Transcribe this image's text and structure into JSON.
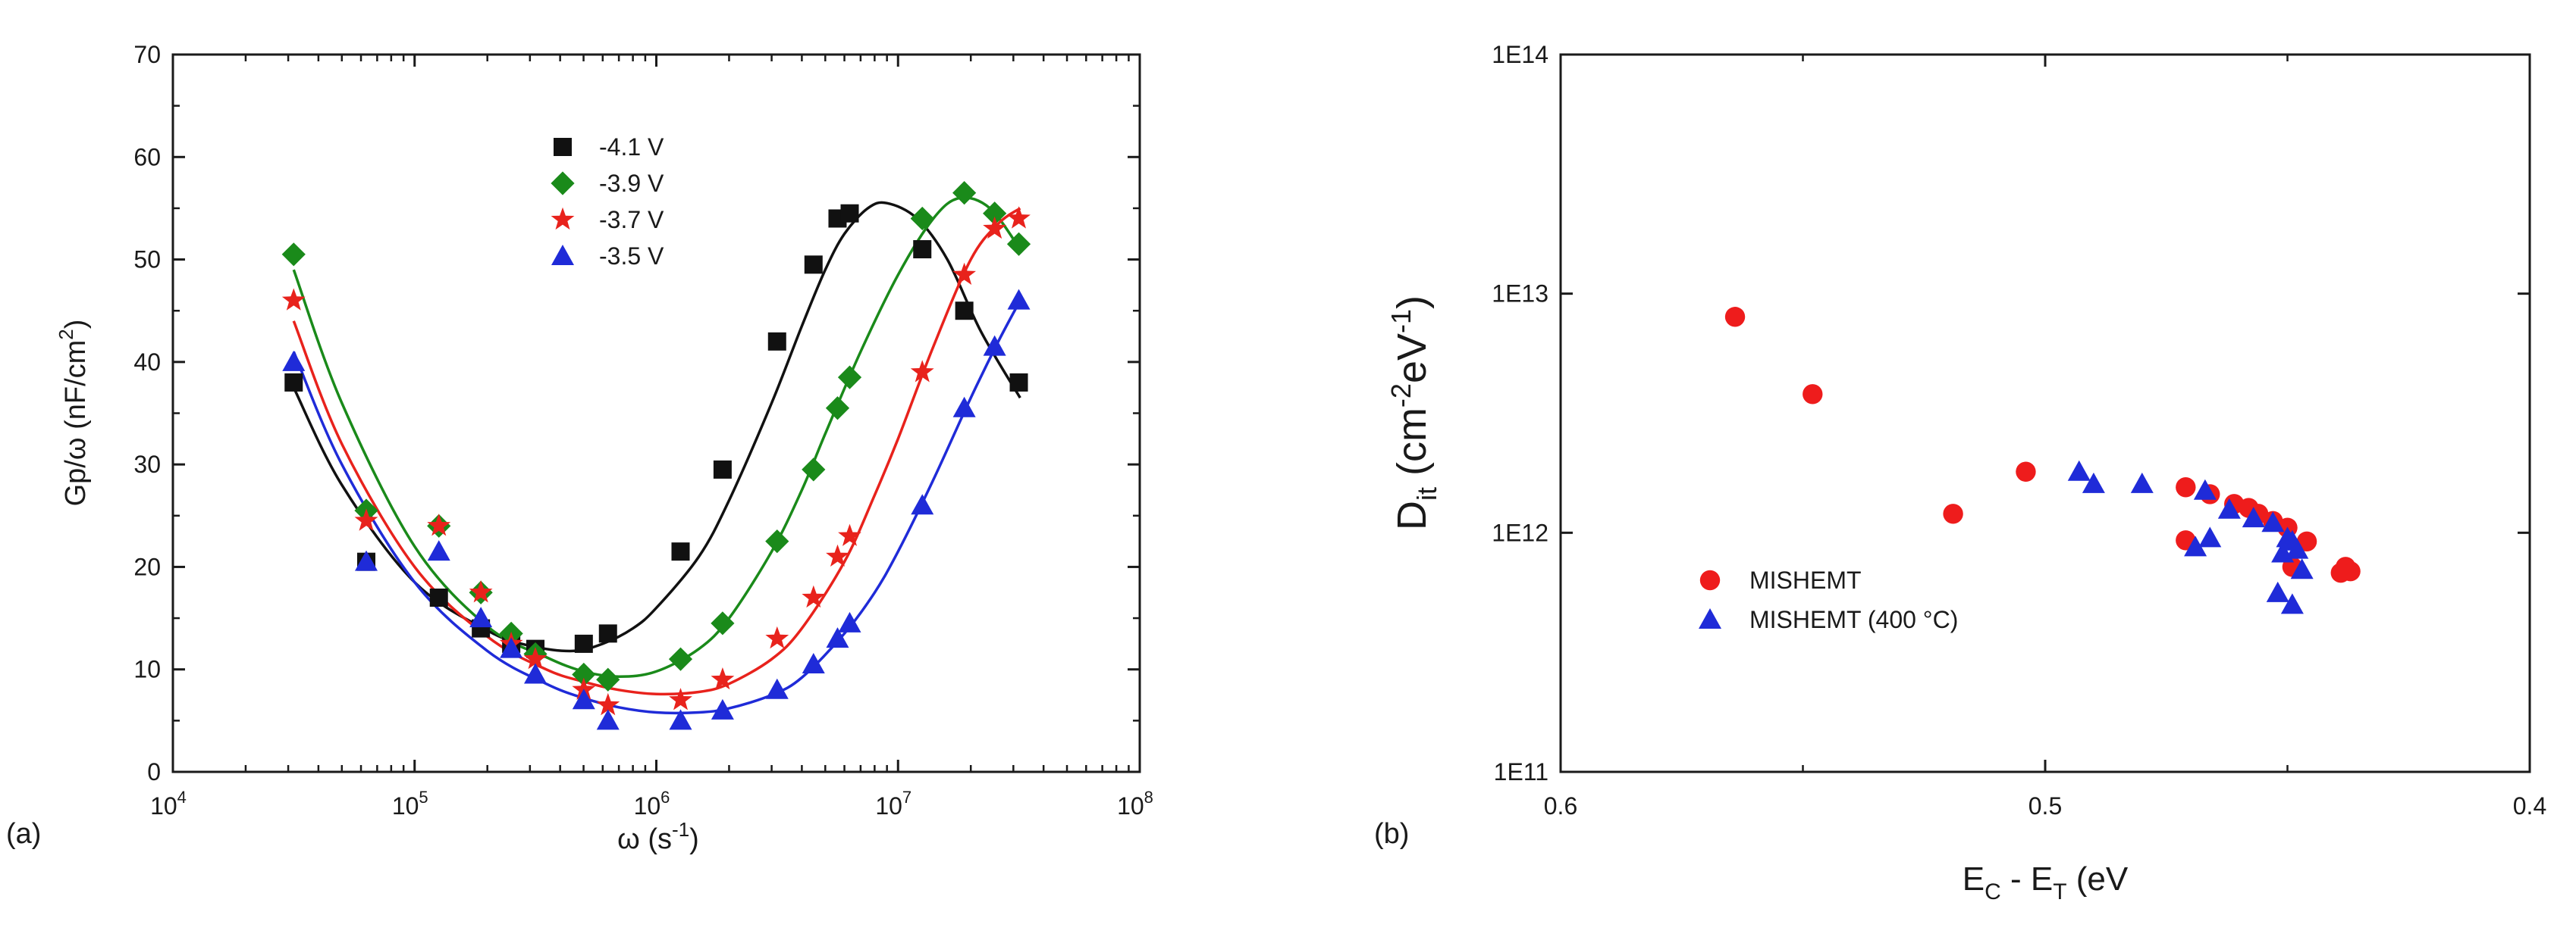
{
  "chart_data": [
    {
      "type": "scatter",
      "panel_label": "(a)",
      "xscale": "log",
      "xlim": [
        10000,
        100000000
      ],
      "ylim": [
        0,
        70
      ],
      "xlabel": {
        "base": "ω (s",
        "sup": "-1",
        "end": ")"
      },
      "ylabel": {
        "base": "Gp/ω (nF/cm",
        "sup": "2",
        "end": ")"
      },
      "x_ticks": [
        {
          "value": 10000,
          "base": "10",
          "exp": "4"
        },
        {
          "value": 100000,
          "base": "10",
          "exp": "5"
        },
        {
          "value": 1000000,
          "base": "10",
          "exp": "6"
        },
        {
          "value": 10000000,
          "base": "10",
          "exp": "7"
        },
        {
          "value": 100000000,
          "base": "10",
          "exp": "8"
        }
      ],
      "y_ticks": [
        0,
        10,
        20,
        30,
        40,
        50,
        60,
        70
      ],
      "y_tick_labels": [
        "0",
        "10",
        "20",
        "30",
        "40",
        "50",
        "60",
        "70"
      ],
      "legend_position": "upper-center",
      "series": [
        {
          "name": "-4.1 V",
          "color": "#111111",
          "marker": "square",
          "x": [
            31600,
            63100,
            126000,
            188000,
            251000,
            316000,
            501000,
            631000,
            1260000,
            1880000,
            3160000,
            4470000,
            5620000,
            6310000,
            12600000,
            18800000,
            31600000
          ],
          "y": [
            38,
            20.5,
            17,
            14,
            12.5,
            12,
            12.5,
            13.5,
            21.5,
            29.5,
            42,
            49.5,
            54,
            54.5,
            51,
            45,
            38
          ],
          "fit_x": [
            31600,
            50000,
            100000,
            200000,
            300000,
            450000,
            600000,
            800000,
            1000000,
            1500000,
            2000000,
            3000000,
            4000000,
            5000000,
            6000000,
            7500000,
            9000000,
            12000000,
            16000000,
            22000000,
            32000000
          ],
          "fit_y": [
            37.5,
            28,
            18.5,
            13.8,
            12.3,
            11.8,
            12.5,
            14,
            16,
            21,
            26.5,
            36,
            43.5,
            49,
            52.5,
            55,
            55.5,
            54,
            50,
            43,
            36.5
          ]
        },
        {
          "name": "-3.9 V",
          "color": "#1a8a1a",
          "marker": "diamond",
          "x": [
            31600,
            63100,
            126000,
            188000,
            251000,
            316000,
            501000,
            631000,
            1260000,
            1880000,
            3160000,
            4470000,
            5620000,
            6310000,
            12600000,
            18800000,
            25100000,
            31600000
          ],
          "y": [
            50.5,
            25.5,
            24,
            17.5,
            13.5,
            11.5,
            9.5,
            9,
            11,
            14.5,
            22.5,
            29.5,
            35.5,
            38.5,
            54,
            56.5,
            54.5,
            51.5
          ],
          "fit_x": [
            31600,
            50000,
            100000,
            200000,
            350000,
            500000,
            700000,
            1000000,
            1500000,
            2000000,
            3000000,
            4000000,
            5000000,
            7000000,
            10000000,
            14000000,
            18000000,
            24000000,
            32000000
          ],
          "fit_y": [
            49,
            36,
            22,
            14.2,
            11.2,
            9.8,
            9.3,
            9.8,
            12,
            15,
            21.5,
            27.5,
            33,
            41,
            48.5,
            54,
            56,
            55,
            51
          ]
        },
        {
          "name": "-3.7 V",
          "color": "#e8221c",
          "marker": "star",
          "x": [
            31600,
            63100,
            126000,
            188000,
            251000,
            316000,
            501000,
            631000,
            1260000,
            1880000,
            3160000,
            4470000,
            5620000,
            6310000,
            12600000,
            18800000,
            25100000,
            31600000
          ],
          "y": [
            46,
            24.5,
            24,
            17.5,
            12.5,
            11,
            8,
            6.5,
            7,
            9,
            13,
            17,
            21,
            23,
            39,
            48.5,
            53,
            54
          ],
          "fit_x": [
            31600,
            50000,
            100000,
            200000,
            350000,
            500000,
            700000,
            1000000,
            1500000,
            2000000,
            3000000,
            4000000,
            6000000,
            8000000,
            10000000,
            14000000,
            20000000,
            26000000,
            32000000
          ],
          "fit_y": [
            44,
            32,
            20,
            13.2,
            10,
            8.8,
            8,
            7.6,
            7.8,
            8.6,
            11,
            14,
            20.5,
            27,
            32.5,
            41.5,
            50,
            53.5,
            55
          ]
        },
        {
          "name": "-3.5 V",
          "color": "#1f2bd8",
          "marker": "triangle",
          "x": [
            31600,
            63100,
            126000,
            188000,
            251000,
            316000,
            501000,
            631000,
            1260000,
            1880000,
            3160000,
            4470000,
            5620000,
            6310000,
            12600000,
            18800000,
            25100000,
            31600000
          ],
          "y": [
            40,
            20.5,
            21.5,
            15,
            12,
            9.5,
            7,
            5,
            5,
            6,
            8,
            10.5,
            13,
            14.5,
            26,
            35.5,
            41.5,
            46
          ],
          "fit_x": [
            31600,
            50000,
            100000,
            200000,
            350000,
            500000,
            700000,
            1000000,
            1500000,
            2000000,
            3000000,
            4000000,
            6000000,
            8000000,
            10000000,
            14000000,
            20000000,
            26000000,
            32000000
          ],
          "fit_y": [
            41,
            30,
            18.5,
            11.8,
            8.6,
            7.2,
            6.3,
            5.8,
            5.8,
            6.2,
            7.5,
            9.2,
            13.5,
            17.5,
            21.5,
            28.5,
            36.5,
            42,
            46
          ]
        }
      ]
    },
    {
      "type": "scatter",
      "panel_label": "(b)",
      "yscale": "log",
      "xlim": [
        0.6,
        0.4
      ],
      "ylim": [
        100000000000,
        100000000000000
      ],
      "xlabel": {
        "p1": "E",
        "s1": "C",
        "p2": " - E",
        "s2": "T",
        "p3": " (eV"
      },
      "ylabel": {
        "p1": "D",
        "s1": "it",
        "p2": " (cm",
        "s2": "-2",
        "p3": "eV",
        "s3": "-1",
        "p4": ")"
      },
      "x_ticks": [
        0.6,
        0.5,
        0.4
      ],
      "x_tick_labels": [
        "0.6",
        "0.5",
        "0.4"
      ],
      "y_ticks": [
        100000000000,
        1000000000000,
        10000000000000,
        100000000000000
      ],
      "y_tick_labels": [
        "1E11",
        "1E12",
        "1E13",
        "1E14"
      ],
      "legend_position": "lower-left",
      "series": [
        {
          "name": "MISHEMT",
          "color": "#ee1c1c",
          "marker": "circle",
          "x": [
            0.564,
            0.548,
            0.519,
            0.504,
            0.471,
            0.466,
            0.461,
            0.458,
            0.456,
            0.453,
            0.45,
            0.446,
            0.471,
            0.449,
            0.439,
            0.437,
            0.438
          ],
          "y": [
            8000000000000.0,
            3800000000000.0,
            1200000000000.0,
            1800000000000.0,
            1550000000000.0,
            1450000000000.0,
            1320000000000.0,
            1270000000000.0,
            1200000000000.0,
            1120000000000.0,
            1050000000000.0,
            920000000000.0,
            930000000000.0,
            720000000000.0,
            680000000000.0,
            690000000000.0,
            720000000000.0
          ]
        },
        {
          "name": "MISHEMT (400 °C)",
          "color": "#1f2bd8",
          "marker": "triangle",
          "x": [
            0.493,
            0.49,
            0.48,
            0.467,
            0.462,
            0.457,
            0.453,
            0.45,
            0.449,
            0.451,
            0.448,
            0.452,
            0.449,
            0.469,
            0.466,
            0.447
          ],
          "y": [
            1800000000000.0,
            1600000000000.0,
            1600000000000.0,
            1500000000000.0,
            1250000000000.0,
            1150000000000.0,
            1100000000000.0,
            950000000000.0,
            920000000000.0,
            820000000000.0,
            850000000000.0,
            560000000000.0,
            500000000000.0,
            870000000000.0,
            950000000000.0,
            700000000000.0
          ]
        }
      ]
    }
  ]
}
